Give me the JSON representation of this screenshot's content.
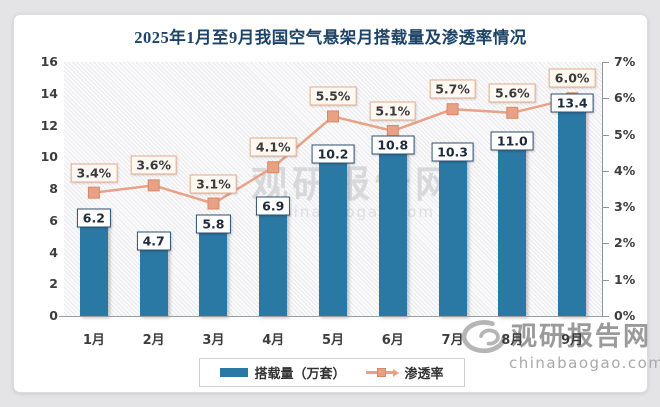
{
  "chart": {
    "title": "2025年1月至9月我国空气悬架月搭载量及渗透率情况"
  },
  "chart_data": {
    "type": "bar",
    "title": "2025年1月至9月我国空气悬架月搭载量及渗透率情况",
    "categories": [
      "1月",
      "2月",
      "3月",
      "4月",
      "5月",
      "6月",
      "7月",
      "8月",
      "9月"
    ],
    "series": [
      {
        "name": "搭载量（万套）",
        "type": "bar",
        "axis": "left",
        "values": [
          6.2,
          4.7,
          5.8,
          6.9,
          10.2,
          10.8,
          10.3,
          11.0,
          13.4
        ],
        "labels": [
          "6.2",
          "4.7",
          "5.8",
          "6.9",
          "10.2",
          "10.8",
          "10.3",
          "11.0",
          "13.4"
        ],
        "color": "#2a78a4"
      },
      {
        "name": "渗透率",
        "type": "line",
        "axis": "right",
        "values": [
          3.4,
          3.6,
          3.1,
          4.1,
          5.5,
          5.1,
          5.7,
          5.6,
          6.0
        ],
        "labels": [
          "3.4%",
          "3.6%",
          "3.1%",
          "4.1%",
          "5.5%",
          "5.1%",
          "5.7%",
          "5.6%",
          "6.0%"
        ],
        "color": "#e8a184"
      }
    ],
    "left_axis": {
      "min": 0,
      "max": 16,
      "step": 2,
      "tick_labels": [
        "0",
        "2",
        "4",
        "6",
        "8",
        "10",
        "12",
        "14",
        "16"
      ]
    },
    "right_axis": {
      "min": 0,
      "max": 7,
      "step": 1,
      "tick_labels": [
        "0%",
        "1%",
        "2%",
        "3%",
        "4%",
        "5%",
        "6%",
        "7%"
      ]
    },
    "legend_position": "bottom",
    "grid": false,
    "plot_background": "diagonal-hatch"
  },
  "legend": {
    "items": [
      {
        "label": "搭载量（万套）",
        "swatch": "bar",
        "color": "#2a78a4"
      },
      {
        "label": "渗透率",
        "swatch": "line",
        "color": "#e8a184"
      }
    ]
  },
  "watermark_center": {
    "line1": "观研报告网",
    "line2": "chinabaogao.com"
  },
  "watermark_corner": {
    "brand": "观研报告网",
    "domain": "chinabaogao.com"
  },
  "colors": {
    "bar": "#2a78a4",
    "line": "#e8a184",
    "marker_border": "#d68a63",
    "title": "#1d4468",
    "pct_box_bg": "#fdf8f1",
    "pct_box_border": "#e3ab8d",
    "bar_box_border": "#2f4f72"
  }
}
